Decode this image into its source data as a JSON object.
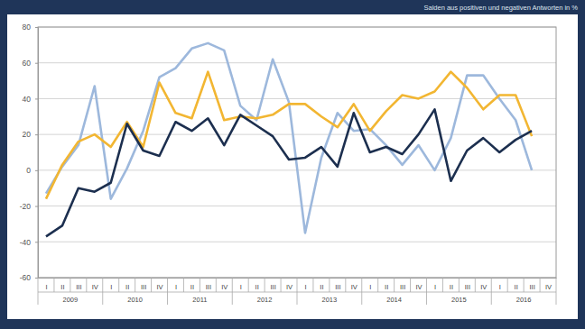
{
  "chart_data": {
    "type": "line",
    "subtitle": "Salden aus positiven und negativen Antworten in %",
    "categories": [
      "I",
      "II",
      "III",
      "IV",
      "I",
      "II",
      "III",
      "IV",
      "I",
      "II",
      "III",
      "IV",
      "I",
      "II",
      "III",
      "IV",
      "I",
      "II",
      "III",
      "IV",
      "I",
      "II",
      "III",
      "IV",
      "I",
      "II",
      "III",
      "IV",
      "I",
      "II",
      "III",
      "IV"
    ],
    "x_groups": [
      "2009",
      "2010",
      "2011",
      "2012",
      "2013",
      "2014",
      "2015",
      "2016"
    ],
    "series": [
      {
        "color": "#9db8dc",
        "values": [
          -13,
          2,
          14,
          47,
          -16,
          1,
          22,
          52,
          57,
          68,
          71,
          67,
          36,
          28,
          62,
          38,
          -35,
          7,
          32,
          22,
          23,
          14,
          3,
          14,
          0,
          18,
          53,
          53,
          40,
          28,
          0,
          null
        ]
      },
      {
        "color": "#f2b632",
        "values": [
          -16,
          3,
          16,
          20,
          13,
          27,
          13,
          49,
          32,
          29,
          55,
          28,
          30,
          29,
          31,
          37,
          37,
          30,
          24,
          37,
          22,
          33,
          42,
          40,
          44,
          55,
          46,
          34,
          42,
          42,
          19,
          null
        ]
      },
      {
        "color": "#1c2f4f",
        "values": [
          -37,
          -31,
          -10,
          -12,
          -7,
          26,
          11,
          8,
          27,
          22,
          29,
          14,
          31,
          25,
          19,
          6,
          7,
          13,
          2,
          32,
          10,
          13,
          9,
          20,
          34,
          -6,
          11,
          18,
          10,
          17,
          22,
          null
        ]
      }
    ],
    "ylim": [
      -60,
      80
    ],
    "yticks": [
      -60,
      -40,
      -20,
      0,
      20,
      40,
      60,
      80
    ],
    "grid": true,
    "legend": false
  }
}
